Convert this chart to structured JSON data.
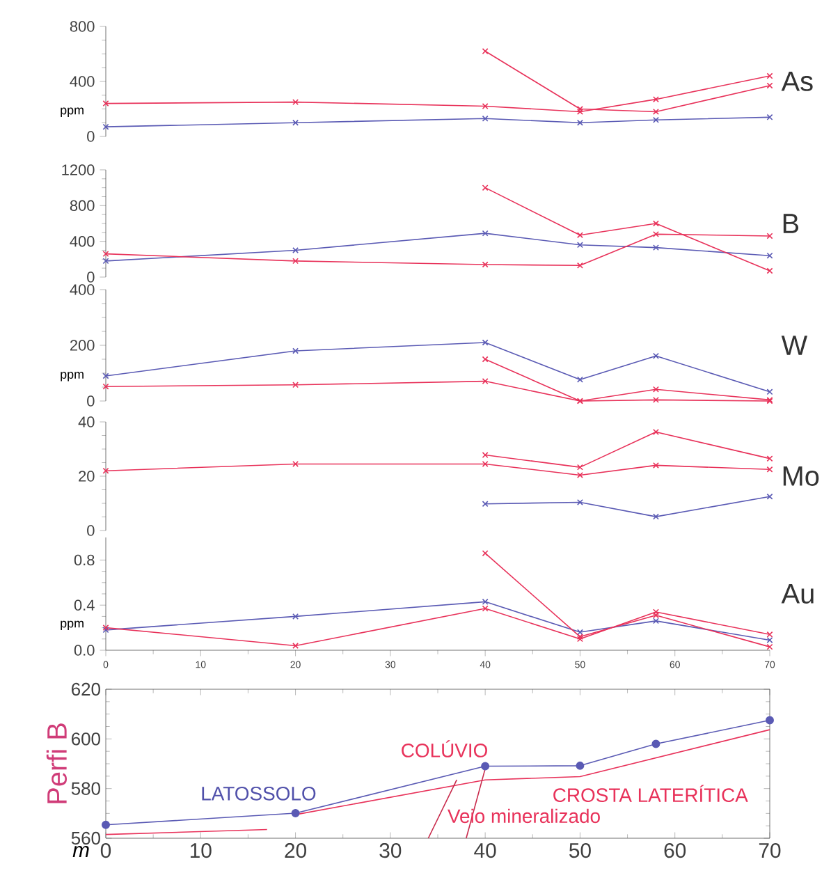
{
  "chart_data": [
    {
      "type": "line",
      "title": "As",
      "ylabel": "ppm",
      "x": [
        0,
        20,
        40,
        50,
        58,
        70
      ],
      "xlim": [
        0,
        70
      ],
      "ylim": [
        0,
        800
      ],
      "yticks": [
        0,
        400,
        800
      ],
      "tick_labels": "y",
      "marker": "cross",
      "series": [
        {
          "color": "#5a5ab4",
          "values": [
            70,
            100,
            130,
            100,
            120,
            140
          ]
        },
        {
          "color": "#e8325a",
          "values": [
            240,
            250,
            220,
            180,
            270,
            440
          ]
        },
        {
          "color": "#e8325a",
          "values": [
            null,
            null,
            620,
            200,
            180,
            370
          ]
        }
      ]
    },
    {
      "type": "line",
      "title": "B",
      "x": [
        0,
        20,
        40,
        50,
        58,
        70
      ],
      "xlim": [
        0,
        70
      ],
      "ylim": [
        0,
        1200
      ],
      "yticks": [
        0,
        400,
        800,
        1200
      ],
      "tick_labels": "y",
      "marker": "cross",
      "series": [
        {
          "color": "#5a5ab4",
          "values": [
            180,
            300,
            490,
            360,
            330,
            240
          ]
        },
        {
          "color": "#e8325a",
          "values": [
            260,
            180,
            140,
            130,
            480,
            460
          ]
        },
        {
          "color": "#e8325a",
          "values": [
            null,
            null,
            1000,
            470,
            600,
            70
          ]
        }
      ]
    },
    {
      "type": "line",
      "title": "W",
      "ylabel": "ppm",
      "x": [
        0,
        20,
        40,
        50,
        58,
        70
      ],
      "xlim": [
        0,
        70
      ],
      "ylim": [
        0,
        400
      ],
      "yticks": [
        0,
        200,
        400
      ],
      "tick_labels": "y",
      "marker": "cross",
      "series": [
        {
          "color": "#5a5ab4",
          "values": [
            90,
            180,
            210,
            77,
            162,
            33
          ]
        },
        {
          "color": "#e8325a",
          "values": [
            52,
            58,
            71,
            0,
            4,
            0
          ]
        },
        {
          "color": "#e8325a",
          "values": [
            null,
            null,
            150,
            0,
            42,
            4
          ]
        }
      ]
    },
    {
      "type": "line",
      "title": "Mo",
      "x": [
        0,
        20,
        40,
        50,
        58,
        70
      ],
      "xlim": [
        0,
        70
      ],
      "ylim": [
        0,
        40
      ],
      "yticks": [
        0,
        20,
        40
      ],
      "tick_labels": "y",
      "marker": "cross",
      "series": [
        {
          "color": "#5a5ab4",
          "values": [
            null,
            null,
            9.8,
            10.4,
            5.1,
            12.5
          ]
        },
        {
          "color": "#e8325a",
          "values": [
            22,
            24.5,
            24.5,
            20.4,
            24,
            22.5
          ]
        },
        {
          "color": "#e8325a",
          "values": [
            null,
            null,
            27.8,
            23.3,
            36.3,
            26.5
          ]
        }
      ]
    },
    {
      "type": "line",
      "title": "Au",
      "ylabel": "ppm",
      "x": [
        0,
        20,
        40,
        50,
        58,
        70
      ],
      "xlim": [
        0,
        70
      ],
      "ylim": [
        0,
        1.0
      ],
      "yticks": [
        {
          "value": 0,
          "label": "0.0"
        },
        0.4,
        0.8
      ],
      "xticks": [
        0,
        10,
        20,
        30,
        40,
        50,
        60,
        70
      ],
      "marker": "cross",
      "series": [
        {
          "color": "#5a5ab4",
          "values": [
            0.18,
            0.3,
            0.43,
            0.16,
            0.26,
            0.09
          ]
        },
        {
          "color": "#e8325a",
          "values": [
            null,
            null,
            0.86,
            0.12,
            0.31,
            0.03
          ]
        },
        {
          "color": "#e8325a",
          "values": [
            0.2,
            0.04,
            0.37,
            0.1,
            0.34,
            0.14
          ]
        }
      ]
    },
    {
      "type": "line",
      "xlabel": "m",
      "ylabel": "Perfi B",
      "xlim": [
        0,
        70
      ],
      "ylim": [
        560,
        620
      ],
      "yticks": [
        560,
        580,
        600,
        620
      ],
      "xticks": [
        0,
        10,
        20,
        30,
        40,
        50,
        60,
        70
      ],
      "marker": "none",
      "annotations": [
        "LATOSSOLO",
        "COLÚVIO",
        "CROSTA LATERÍTICA",
        "Veio mineralizado"
      ],
      "series": [
        {
          "color": "#5a5ab4",
          "marker": "circle",
          "x": [
            0,
            20,
            40,
            50,
            58,
            70
          ],
          "values": [
            565.4,
            570.1,
            589,
            589.2,
            598,
            607.5
          ]
        },
        {
          "color": "#e8325a",
          "x": [
            0,
            17
          ],
          "values": [
            561.5,
            563.5
          ]
        },
        {
          "color": "#e8325a",
          "x": [
            20,
            40,
            50,
            70
          ],
          "values": [
            569.5,
            583.5,
            584.8,
            603.7
          ]
        },
        {
          "color": "#c8284a",
          "x": [
            34,
            37
          ],
          "values": [
            560,
            583.5
          ]
        },
        {
          "color": "#c8284a",
          "x": [
            38,
            40
          ],
          "values": [
            560,
            588
          ]
        }
      ]
    }
  ]
}
